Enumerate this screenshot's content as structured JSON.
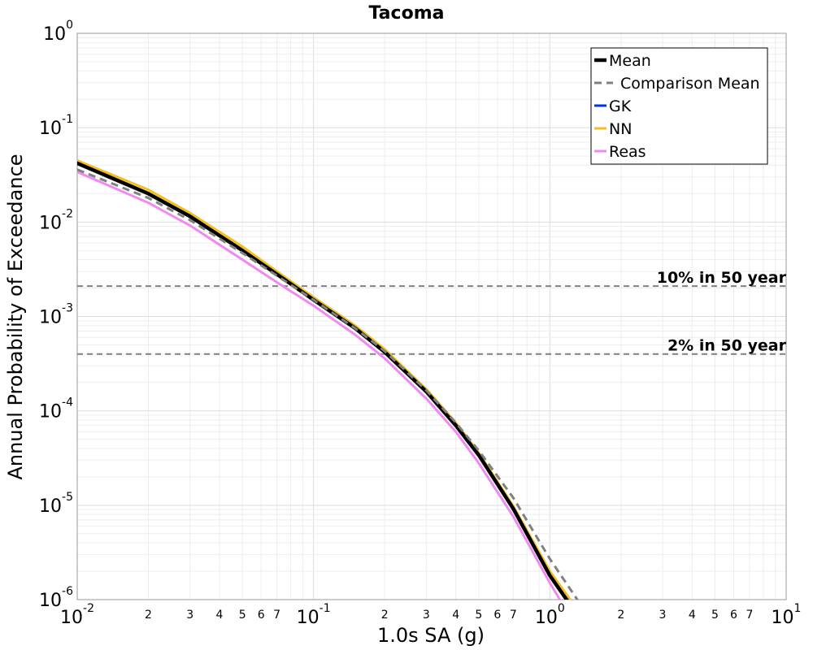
{
  "chart_data": {
    "type": "line",
    "title": "Tacoma",
    "xlabel": "1.0s SA (g)",
    "ylabel": "Annual Probability of Exceedance",
    "x_scale": "log",
    "y_scale": "log",
    "xlim": [
      0.01,
      10
    ],
    "ylim": [
      1e-06,
      1
    ],
    "grid": true,
    "legend_position": "top-right",
    "x_major_ticks": [
      {
        "base": "10",
        "exp": "-2"
      },
      {
        "base": "10",
        "exp": "-1"
      },
      {
        "base": "10",
        "exp": "0"
      },
      {
        "base": "10",
        "exp": "1"
      }
    ],
    "y_major_ticks": [
      {
        "base": "10",
        "exp": "0"
      },
      {
        "base": "10",
        "exp": "-1"
      },
      {
        "base": "10",
        "exp": "-2"
      },
      {
        "base": "10",
        "exp": "-3"
      },
      {
        "base": "10",
        "exp": "-4"
      },
      {
        "base": "10",
        "exp": "-5"
      },
      {
        "base": "10",
        "exp": "-6"
      }
    ],
    "x_minor_labels": [
      "2",
      "3",
      "4",
      "5",
      "6",
      "7"
    ],
    "reference_lines": [
      {
        "label": "10% in 50 year",
        "y": 0.0021
      },
      {
        "label": "2% in 50 year",
        "y": 0.0004
      }
    ],
    "series": [
      {
        "name": "Mean",
        "color": "#000000",
        "style": "solid",
        "width": 4.5,
        "x": [
          0.01,
          0.02,
          0.03,
          0.05,
          0.07,
          0.1,
          0.15,
          0.2,
          0.3,
          0.4,
          0.5,
          0.7,
          1.0,
          1.3
        ],
        "y": [
          0.042,
          0.02,
          0.0115,
          0.005,
          0.0028,
          0.0015,
          0.00075,
          0.00042,
          0.00016,
          7e-05,
          3.4e-05,
          9.2e-06,
          1.8e-06,
          7e-07
        ]
      },
      {
        "name": "Comparison Mean",
        "color": "#808080",
        "style": "dashed",
        "width": 3,
        "x": [
          0.01,
          0.02,
          0.03,
          0.05,
          0.07,
          0.1,
          0.15,
          0.2,
          0.3,
          0.4,
          0.5,
          0.7,
          1.0,
          1.5
        ],
        "y": [
          0.036,
          0.018,
          0.0105,
          0.0047,
          0.0027,
          0.0015,
          0.00075,
          0.00043,
          0.000165,
          7.5e-05,
          3.8e-05,
          1.2e-05,
          2.7e-06,
          6e-07
        ]
      },
      {
        "name": "GK",
        "color": "#0033ee",
        "style": "solid",
        "width": 2.5,
        "x": [],
        "y": []
      },
      {
        "name": "NN",
        "color": "#f0c020",
        "style": "solid",
        "width": 3,
        "x": [
          0.01,
          0.02,
          0.03,
          0.05,
          0.07,
          0.1,
          0.15,
          0.2,
          0.3,
          0.4,
          0.5,
          0.7,
          1.0,
          1.35
        ],
        "y": [
          0.045,
          0.022,
          0.0125,
          0.0055,
          0.003,
          0.0016,
          0.0008,
          0.00045,
          0.00017,
          7.5e-05,
          3.6e-05,
          9.8e-06,
          2e-06,
          7e-07
        ]
      },
      {
        "name": "Reas",
        "color": "#f08af0",
        "style": "solid",
        "width": 3,
        "x": [
          0.01,
          0.02,
          0.03,
          0.05,
          0.07,
          0.1,
          0.15,
          0.2,
          0.3,
          0.4,
          0.5,
          0.7,
          1.0,
          1.2
        ],
        "y": [
          0.034,
          0.016,
          0.0092,
          0.004,
          0.0023,
          0.0013,
          0.00064,
          0.00036,
          0.000135,
          6e-05,
          2.8e-05,
          7.6e-06,
          1.5e-06,
          7e-07
        ]
      }
    ]
  }
}
